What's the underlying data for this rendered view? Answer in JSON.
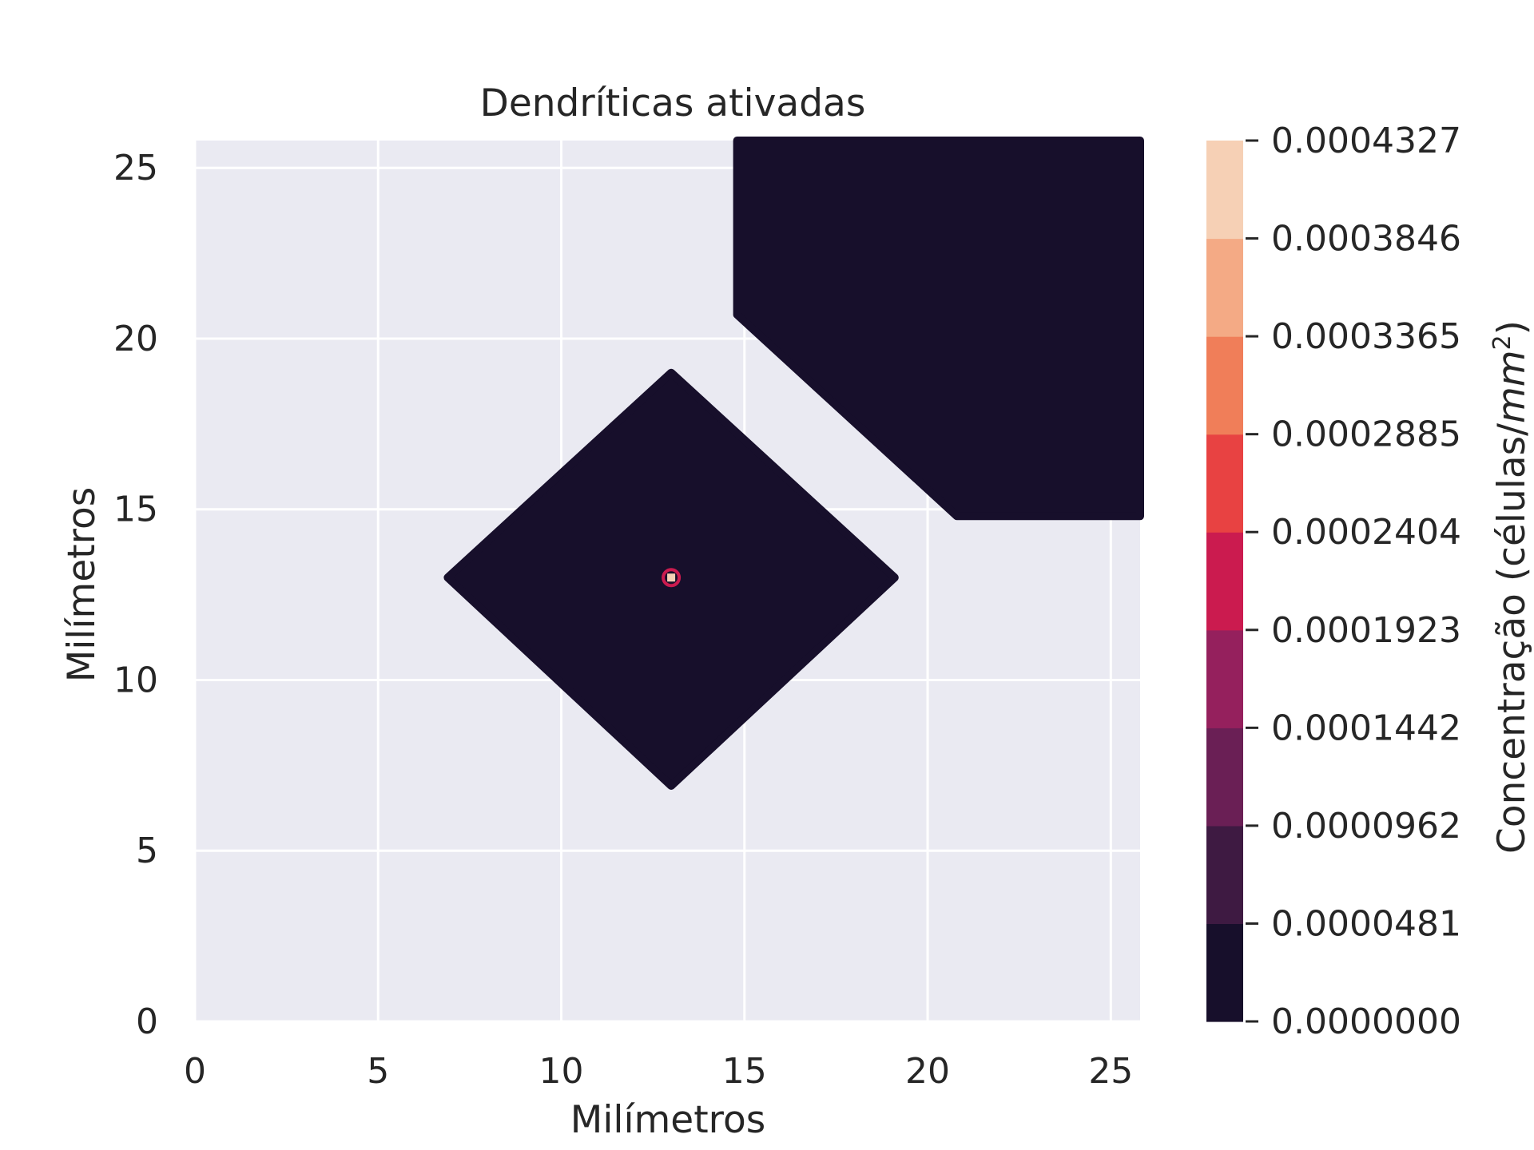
{
  "chart_data": {
    "type": "heatmap",
    "subtype": "filled-contour",
    "title": "Dendríticas ativadas",
    "xlabel": "Milímetros",
    "ylabel": "Milímetros",
    "xlim": [
      0,
      25.8
    ],
    "ylim": [
      0,
      25.8
    ],
    "xticks": [
      "0",
      "5",
      "10",
      "15",
      "20",
      "25"
    ],
    "yticks": [
      "0",
      "5",
      "10",
      "15",
      "20",
      "25"
    ],
    "grid": true,
    "background_color": "#eaeaf2",
    "regions": [
      {
        "name": "diamond",
        "level_band": [
          0.0,
          4.81e-05
        ],
        "color": "#170f2b",
        "polygon": [
          [
            13,
            19
          ],
          [
            19.1,
            13
          ],
          [
            13,
            6.9
          ],
          [
            6.9,
            13
          ]
        ]
      },
      {
        "name": "upper-right",
        "level_band": [
          0.0,
          4.81e-05
        ],
        "color": "#170f2b",
        "polygon": [
          [
            14.8,
            25.8
          ],
          [
            25.8,
            25.8
          ],
          [
            25.8,
            14.8
          ],
          [
            20.8,
            14.8
          ],
          [
            14.8,
            20.7
          ]
        ]
      },
      {
        "name": "center-spot",
        "center": [
          13,
          13
        ],
        "color": "#cb1b4f"
      }
    ],
    "colorbar": {
      "label_prefix": "Concentração (células/",
      "label_unit": "mm",
      "label_exp": "2",
      "label_suffix": ")",
      "ticks": [
        "0.0000000",
        "0.0000481",
        "0.0000962",
        "0.0001442",
        "0.0001923",
        "0.0002404",
        "0.0002885",
        "0.0003365",
        "0.0003846",
        "0.0004327"
      ],
      "colors": [
        "#170f2b",
        "#3e1a42",
        "#6a1f55",
        "#95205d",
        "#cb1b4f",
        "#e84242",
        "#f07e59",
        "#f4aa85",
        "#f6d0b5"
      ]
    }
  }
}
